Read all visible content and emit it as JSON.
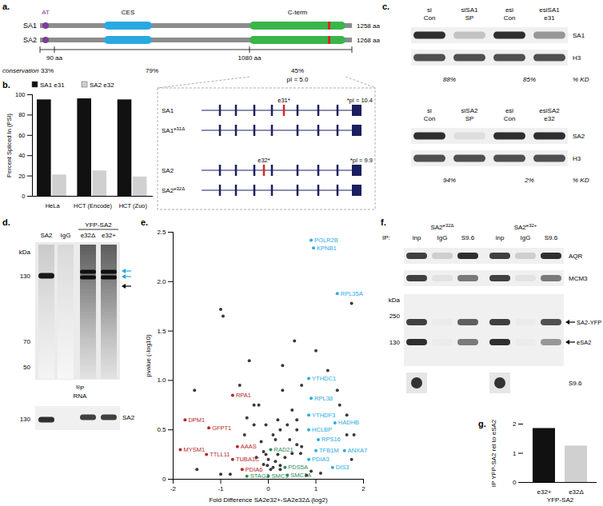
{
  "panel_labels": {
    "a": "a.",
    "b": "b.",
    "c": "c.",
    "d": "d.",
    "e": "e.",
    "f": "f.",
    "g": "g."
  },
  "a": {
    "proteins": [
      {
        "name": "SA1",
        "length": "1258 aa"
      },
      {
        "name": "SA2",
        "length": "1268 aa"
      }
    ],
    "domains": [
      "AT",
      "CES",
      "C-term"
    ],
    "boundaries": [
      "90 aa",
      "1080 aa"
    ],
    "conservation_label": "conservation",
    "conservation": [
      "33%",
      "79%",
      "45%"
    ],
    "pI": "pI = 5.0",
    "inset": [
      {
        "name": "SA1",
        "exon": "e31*",
        "pI": "*pI = 10.4"
      },
      {
        "name": "SA1",
        "sup": "e31Δ"
      },
      {
        "name": "SA2",
        "exon": "e32*",
        "pI": "*pI = 9.9"
      },
      {
        "name": "SA2",
        "sup": "e32Δ"
      }
    ]
  },
  "c": {
    "blots": [
      {
        "lanes": [
          [
            "si",
            "Con"
          ],
          [
            "siSA1",
            "SP"
          ],
          [
            "esi",
            "Con"
          ],
          [
            "esiSA1",
            "e31"
          ]
        ],
        "rows": [
          "SA1",
          "H3"
        ],
        "knockdown": [
          "88%",
          "85%"
        ],
        "knockdown_label": "% KD"
      },
      {
        "lanes": [
          [
            "si",
            "Con"
          ],
          [
            "siSA2",
            "SP"
          ],
          [
            "esi",
            "Con"
          ],
          [
            "esiSA2",
            "e32"
          ]
        ],
        "rows": [
          "SA2",
          "H3"
        ],
        "knockdown": [
          "94%",
          "2%"
        ],
        "knockdown_label": "% KD"
      }
    ]
  },
  "d": {
    "header": [
      "SA2",
      "IgG"
    ],
    "group": "YFP-SA2",
    "group_lanes": [
      "e32Δ",
      "e32+"
    ],
    "kDa_label": "kDa",
    "kDa": [
      "130",
      "70",
      "50"
    ],
    "signal": [
      "³²P",
      "RNA"
    ],
    "lower": {
      "label": "SA2",
      "kDa": "130"
    }
  },
  "f": {
    "groups": [
      {
        "name": "SA2",
        "sup": "e32Δ"
      },
      {
        "name": "SA2",
        "sup": "e32+"
      }
    ],
    "ip": "IP:",
    "lanes": [
      "inp",
      "IgG",
      "S9.6"
    ],
    "rows": [
      "AQR",
      "MCM3"
    ],
    "kDa_label": "kDa",
    "kDa": [
      "250",
      "130"
    ],
    "bands": [
      "SA2-YFP",
      "eSA2"
    ],
    "dot_label": "S9.6"
  },
  "chart_data": [
    {
      "type": "bar",
      "categories": [
        "HeLa",
        "HCT (Encode)",
        "HCT (Zuo)"
      ],
      "series": [
        {
          "name": "SA1 e31",
          "color": "#111111",
          "values": [
            95,
            96,
            95
          ]
        },
        {
          "name": "SA2 e32",
          "color": "#d0d0d0",
          "values": [
            21,
            25,
            19
          ]
        }
      ],
      "ylabel": "Percent Spliced In (PSI)",
      "ylim": [
        0,
        100
      ],
      "yticks": [
        0,
        20,
        40,
        60,
        80,
        100
      ],
      "legend": "top"
    },
    {
      "type": "scatter",
      "xlabel": "Fold Difference SA2e32+-SA2e32Δ (log2)",
      "ylabel": "pvalue (-log10)",
      "xlim": [
        -2,
        2
      ],
      "xticks": [
        -2,
        -1,
        0,
        1,
        2
      ],
      "ylim": [
        0,
        2.5
      ],
      "yticks": [
        0,
        0.5,
        {
          "value": 1,
          "label": "1.0"
        },
        1.5,
        {
          "value": 2,
          "label": "2.0"
        },
        2.5
      ],
      "series": [
        {
          "color": "#3a3a3a",
          "x": [
            -1.0,
            -0.95,
            -0.4,
            -0.6,
            -0.2,
            0.3,
            0.5,
            0.2,
            -0.3,
            0.6,
            -0.5,
            0.1,
            0.45,
            -0.15,
            0.25,
            0.7,
            1.25,
            1.65,
            1.8,
            -0.05,
            -0.1,
            0.2,
            0.5,
            0.68,
            -1.5,
            -0.25,
            0.0,
            0.15,
            0.35,
            -1.0,
            0.8,
            -0.1,
            0.1,
            0.25,
            -0.05,
            0.05,
            -0.02,
            -1.55,
            -0.3,
            0.55,
            0.6,
            0.9,
            1.1,
            -0.8,
            0.15,
            -0.45,
            0.4,
            0.6,
            1.5,
            0.7,
            1.65,
            1.45,
            1.0,
            0.25,
            1.75,
            1.75,
            0.3
          ],
          "y": [
            1.72,
            1.65,
            1.2,
            0.95,
            0.75,
            0.9,
            0.7,
            0.6,
            0.55,
            0.5,
            0.45,
            0.45,
            0.4,
            0.38,
            0.5,
            0.33,
            1.1,
            0.45,
            0.45,
            0.55,
            0.28,
            0.25,
            0.26,
            0.26,
            0.1,
            0.22,
            0.2,
            0.18,
            0.22,
            0.05,
            0.04,
            0.15,
            0.12,
            0.1,
            0.25,
            0.1,
            0.14,
            0.9,
            0.75,
            1.4,
            0.35,
            0.08,
            0.06,
            0.05,
            0.4,
            0.62,
            0.55,
            0.6,
            0.75,
            0.95,
            0.65,
            0.9,
            1.3,
            0.14,
            0.2,
            1.78,
            1.15
          ]
        },
        {
          "color": "#29abe2",
          "x": [
            0.9,
            0.95,
            1.45,
            0.85,
            0.9,
            0.85,
            1.4,
            0.85,
            1.05,
            1.0,
            1.6,
            1.35,
            0.85
          ],
          "y": [
            2.42,
            2.34,
            1.88,
            1.02,
            0.82,
            0.65,
            0.57,
            0.5,
            0.4,
            0.29,
            0.29,
            0.12,
            0.2
          ],
          "labels": [
            "POLR2B",
            "KPNB1",
            "RPL35A",
            "YTHDC1",
            "RPL38",
            "YTHDF3",
            "HADHB",
            "HCLBP",
            "RPS16",
            "TFB1M",
            "ANXA7",
            "DIS3",
            "PDIA3"
          ]
        },
        {
          "color": "#b5282e",
          "x": [
            -0.75,
            -1.75,
            -1.25,
            -1.85,
            -1.3,
            -0.65,
            -0.75,
            -0.55
          ],
          "y": [
            0.85,
            0.6,
            0.52,
            0.3,
            0.25,
            0.33,
            0.2,
            0.1
          ],
          "labels": [
            "RPA1",
            "DPM1",
            "GFPT1",
            "MYSM1",
            "TTLL11",
            "AAAS",
            "TUBA1C",
            "PDIA6"
          ]
        },
        {
          "color": "#2e8b57",
          "x": [
            0.05,
            0.35,
            0.4,
            -0.45,
            0.0
          ],
          "y": [
            0.3,
            0.12,
            0.04,
            0.03,
            0.03
          ],
          "labels": [
            "RAD21",
            "PDS5A",
            "SMC1A",
            "STAG2",
            "SMC3"
          ]
        }
      ]
    },
    {
      "type": "bar",
      "categories": [
        "e32+",
        "e32Δ"
      ],
      "values": [
        1.85,
        1.25
      ],
      "colors": [
        "#111111",
        "#d0d0d0"
      ],
      "xlabel": "YFP-SA2",
      "ylabel": "IP YFP-SA2 rel to eSA2",
      "ylim": [
        0,
        2
      ],
      "yticks": [
        0,
        1,
        2
      ]
    }
  ]
}
